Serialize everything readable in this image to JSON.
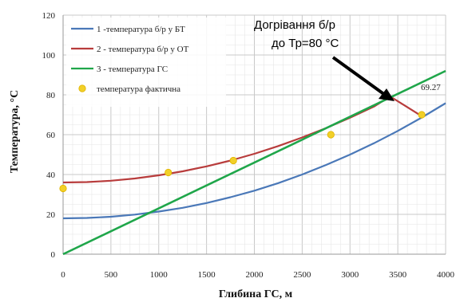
{
  "chart_data": {
    "type": "line",
    "title": "",
    "xlabel": "Глибина ГС, м",
    "ylabel": "Температура, °С",
    "xlim": [
      0,
      4000
    ],
    "ylim": [
      0,
      120
    ],
    "x_ticks": [
      0,
      500,
      1000,
      1500,
      2000,
      2500,
      3000,
      3500,
      4000
    ],
    "y_ticks": [
      0,
      20,
      40,
      60,
      80,
      100,
      120
    ],
    "grid": true,
    "legend_position": "top-left",
    "series": [
      {
        "name": "1 -температура б/р у БТ",
        "color": "#4a78b8",
        "style": "line",
        "x": [
          0,
          250,
          500,
          750,
          1000,
          1250,
          1500,
          1750,
          2000,
          2250,
          2500,
          2750,
          3000,
          3250,
          3500,
          3750,
          4000
        ],
        "y": [
          18,
          18.2,
          18.8,
          19.9,
          21.4,
          23.3,
          25.7,
          28.6,
          31.9,
          35.7,
          40,
          44.8,
          50,
          55.7,
          61.9,
          68.6,
          75.8
        ]
      },
      {
        "name": "2 - температура б/р у ОТ",
        "color": "#b83c3c",
        "style": "line",
        "x": [
          0,
          250,
          500,
          750,
          1000,
          1250,
          1500,
          1750,
          2000,
          2250,
          2500,
          2750,
          3000,
          3250,
          3420,
          3750
        ],
        "y": [
          36,
          36.2,
          36.9,
          38,
          39.6,
          41.6,
          44.1,
          47,
          50.4,
          54.3,
          58.6,
          63.3,
          68.5,
          74.1,
          79.2,
          69.3
        ]
      },
      {
        "name": "3 - температура ГС",
        "color": "#1fa64a",
        "style": "line",
        "x": [
          0,
          4000
        ],
        "y": [
          0,
          92
        ]
      },
      {
        "name": "температура фактична",
        "color": "#f2d028",
        "style": "marker",
        "x": [
          0,
          1100,
          1780,
          2800,
          3750
        ],
        "y": [
          33,
          41,
          47,
          60,
          70
        ]
      }
    ],
    "annotations": [
      {
        "text": "Догрівання б/р",
        "x": 3420,
        "y": 79
      },
      {
        "text": "до Тр=80 °С",
        "x": 3420,
        "y": 79
      },
      {
        "text": "69.27",
        "x": 3750,
        "y": 69.27
      }
    ]
  }
}
